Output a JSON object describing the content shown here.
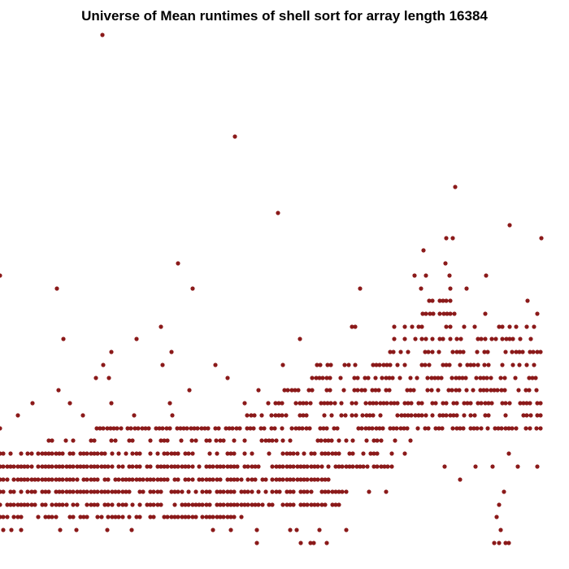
{
  "chart_data": {
    "type": "scatter",
    "title": "Universe of Mean runtimes of shell sort for array length 16384",
    "xlabel": "",
    "ylabel": "",
    "axes_shown": false,
    "grid": false,
    "legend": "none",
    "point_color": "#8B1A1A",
    "series": [
      {
        "points": [
          [
            0,
            339
          ],
          [
            70,
            355
          ],
          [
            126,
            43
          ],
          [
            219,
            324
          ],
          [
            237,
            355
          ],
          [
            289,
            168
          ],
          [
            342,
            262
          ],
          [
            443,
            355
          ],
          [
            560,
            230
          ],
          [
            627,
            277
          ],
          [
            666,
            293
          ],
          [
            521,
            308
          ],
          [
            549,
            293
          ],
          [
            557,
            293
          ],
          [
            548,
            324
          ],
          [
            510,
            339
          ],
          [
            524,
            339
          ],
          [
            553,
            339
          ],
          [
            598,
            339
          ],
          [
            518,
            355
          ],
          [
            554,
            355
          ],
          [
            574,
            355
          ],
          [
            78,
            417
          ],
          [
            168,
            417
          ],
          [
            198,
            402
          ],
          [
            137,
            433
          ],
          [
            211,
            433
          ],
          [
            369,
            417
          ],
          [
            433,
            402
          ],
          [
            437,
            402
          ],
          [
            649,
            370
          ],
          [
            661,
            386
          ],
          [
            597,
            386
          ],
          [
            0,
            527
          ],
          [
            22,
            511
          ],
          [
            40,
            496
          ],
          [
            72,
            480
          ],
          [
            86,
            496
          ],
          [
            102,
            511
          ],
          [
            118,
            465
          ],
          [
            127,
            449
          ],
          [
            134,
            465
          ],
          [
            137,
            496
          ],
          [
            165,
            511
          ],
          [
            161,
            527
          ],
          [
            200,
            449
          ],
          [
            209,
            496
          ],
          [
            212,
            511
          ],
          [
            233,
            480
          ],
          [
            265,
            449
          ],
          [
            280,
            465
          ],
          [
            301,
            496
          ],
          [
            318,
            480
          ],
          [
            348,
            449
          ],
          [
            359,
            480
          ],
          [
            547,
            574
          ],
          [
            566,
            590
          ],
          [
            585,
            574
          ],
          [
            606,
            574
          ],
          [
            637,
            574
          ],
          [
            626,
            558
          ],
          [
            661,
            574
          ],
          [
            454,
            605
          ],
          [
            475,
            605
          ],
          [
            498,
            558
          ],
          [
            505,
            542
          ],
          [
            608,
            668
          ],
          [
            614,
            668
          ],
          [
            622,
            668
          ],
          [
            626,
            668
          ],
          [
            616,
            652
          ],
          [
            611,
            636
          ],
          [
            614,
            621
          ],
          [
            620,
            605
          ],
          [
            316,
            668
          ],
          [
            370,
            668
          ],
          [
            382,
            668
          ],
          [
            386,
            668
          ],
          [
            402,
            668
          ],
          [
            316,
            652
          ],
          [
            357,
            652
          ],
          [
            365,
            652
          ],
          [
            393,
            652
          ],
          [
            426,
            652
          ],
          [
            4,
            652
          ],
          [
            14,
            652
          ],
          [
            26,
            652
          ],
          [
            74,
            652
          ],
          [
            94,
            652
          ],
          [
            132,
            652
          ],
          [
            162,
            652
          ],
          [
            262,
            652
          ],
          [
            284,
            652
          ]
        ],
        "bands": [
          {
            "y": 636,
            "x_from": 0,
            "x_to": 300,
            "density": 0.7
          },
          {
            "y": 621,
            "x_from": 0,
            "x_to": 420,
            "density": 0.75
          },
          {
            "y": 605,
            "x_from": 0,
            "x_to": 430,
            "density": 0.8
          },
          {
            "y": 590,
            "x_from": 0,
            "x_to": 405,
            "density": 0.9
          },
          {
            "y": 574,
            "x_from": 0,
            "x_to": 485,
            "density": 0.85
          },
          {
            "y": 558,
            "x_from": 0,
            "x_to": 490,
            "density": 0.6
          },
          {
            "y": 542,
            "x_from": 60,
            "x_to": 520,
            "density": 0.5
          },
          {
            "y": 527,
            "x_from": 110,
            "x_to": 666,
            "density": 0.65
          },
          {
            "y": 511,
            "x_from": 300,
            "x_to": 666,
            "density": 0.6
          },
          {
            "y": 496,
            "x_from": 330,
            "x_to": 666,
            "density": 0.65
          },
          {
            "y": 480,
            "x_from": 350,
            "x_to": 666,
            "density": 0.55
          },
          {
            "y": 465,
            "x_from": 380,
            "x_to": 666,
            "density": 0.6
          },
          {
            "y": 449,
            "x_from": 390,
            "x_to": 666,
            "density": 0.5
          },
          {
            "y": 433,
            "x_from": 480,
            "x_to": 666,
            "density": 0.55
          },
          {
            "y": 417,
            "x_from": 485,
            "x_to": 660,
            "density": 0.45
          },
          {
            "y": 402,
            "x_from": 485,
            "x_to": 662,
            "density": 0.35
          },
          {
            "y": 386,
            "x_from": 520,
            "x_to": 560,
            "density": 0.6
          },
          {
            "y": 370,
            "x_from": 528,
            "x_to": 556,
            "density": 0.8
          }
        ]
      }
    ]
  }
}
